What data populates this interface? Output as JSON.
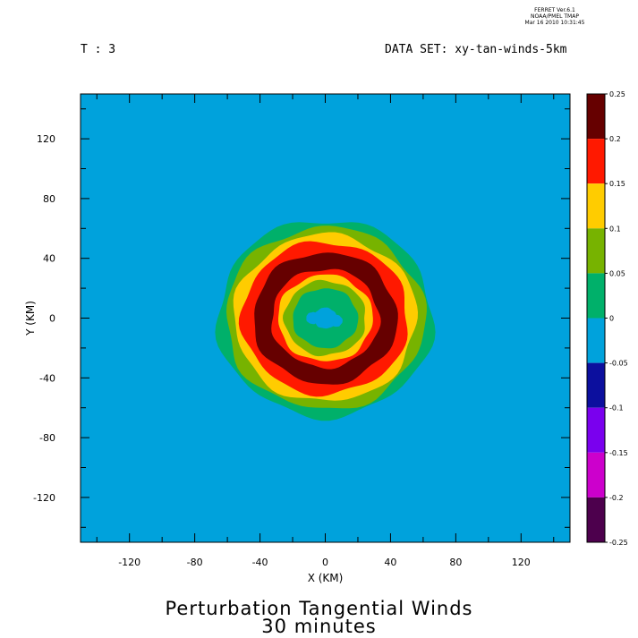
{
  "header": {
    "ferret_lines": [
      "FERRET  Ver.6.1",
      "NOAA/PMEL TMAP",
      "Mar 16 2010 10:31:45"
    ],
    "time_label": "T : 3",
    "dataset_label": "DATA SET: xy-tan-winds-5km"
  },
  "titles": {
    "line1": "Perturbation Tangential Winds",
    "line2": "30 minutes"
  },
  "chart_data": {
    "type": "filled-contour",
    "xlabel": "X (KM)",
    "ylabel": "Y (KM)",
    "xlim": [
      -150,
      150
    ],
    "ylim": [
      -150,
      150
    ],
    "x_ticks": [
      -120,
      -80,
      -40,
      0,
      40,
      80,
      120
    ],
    "y_ticks": [
      120,
      80,
      40,
      0,
      -40,
      -80,
      -120
    ],
    "colorbar": {
      "levels": [
        0.25,
        0.2,
        0.15,
        0.1,
        0.05,
        0,
        -0.05,
        -0.1,
        -0.15,
        -0.2,
        -0.25
      ],
      "level_labels": [
        "0.25",
        "0.2",
        "0.15",
        "0.1",
        "0.05",
        "0",
        "-0.05",
        "-0.1",
        "-0.15",
        "-0.2",
        "-0.25"
      ],
      "colors_top_to_bottom": [
        "#660000",
        "#ff1900",
        "#ffcc00",
        "#77b300",
        "#00b06a",
        "#00a2dc",
        "#0c0f9e",
        "#7a00ee",
        "#cc00cc",
        "#4d004d"
      ]
    },
    "ring": {
      "center_km": [
        0,
        0
      ],
      "contours": [
        {
          "level": "0 to 0.05",
          "outer_radius_km": 66,
          "inner_radius_km": 14,
          "color": "#00b06a"
        },
        {
          "level": "0.05 to 0.1",
          "outer_radius_km": 61,
          "inner_radius_km": 20,
          "color": "#77b300"
        },
        {
          "level": "0.1 to 0.15",
          "outer_radius_km": 56,
          "inner_radius_km": 25,
          "color": "#ffcc00"
        },
        {
          "level": "0.15 to 0.2",
          "outer_radius_km": 51,
          "inner_radius_km": 29,
          "color": "#ff1900"
        },
        {
          "level": "0.2 to 0.25",
          "outer_radius_km": 44,
          "inner_radius_km": 33,
          "color": "#660000"
        }
      ],
      "inner_core_color": "#00b06a",
      "background_color": "#00a2dc"
    }
  }
}
